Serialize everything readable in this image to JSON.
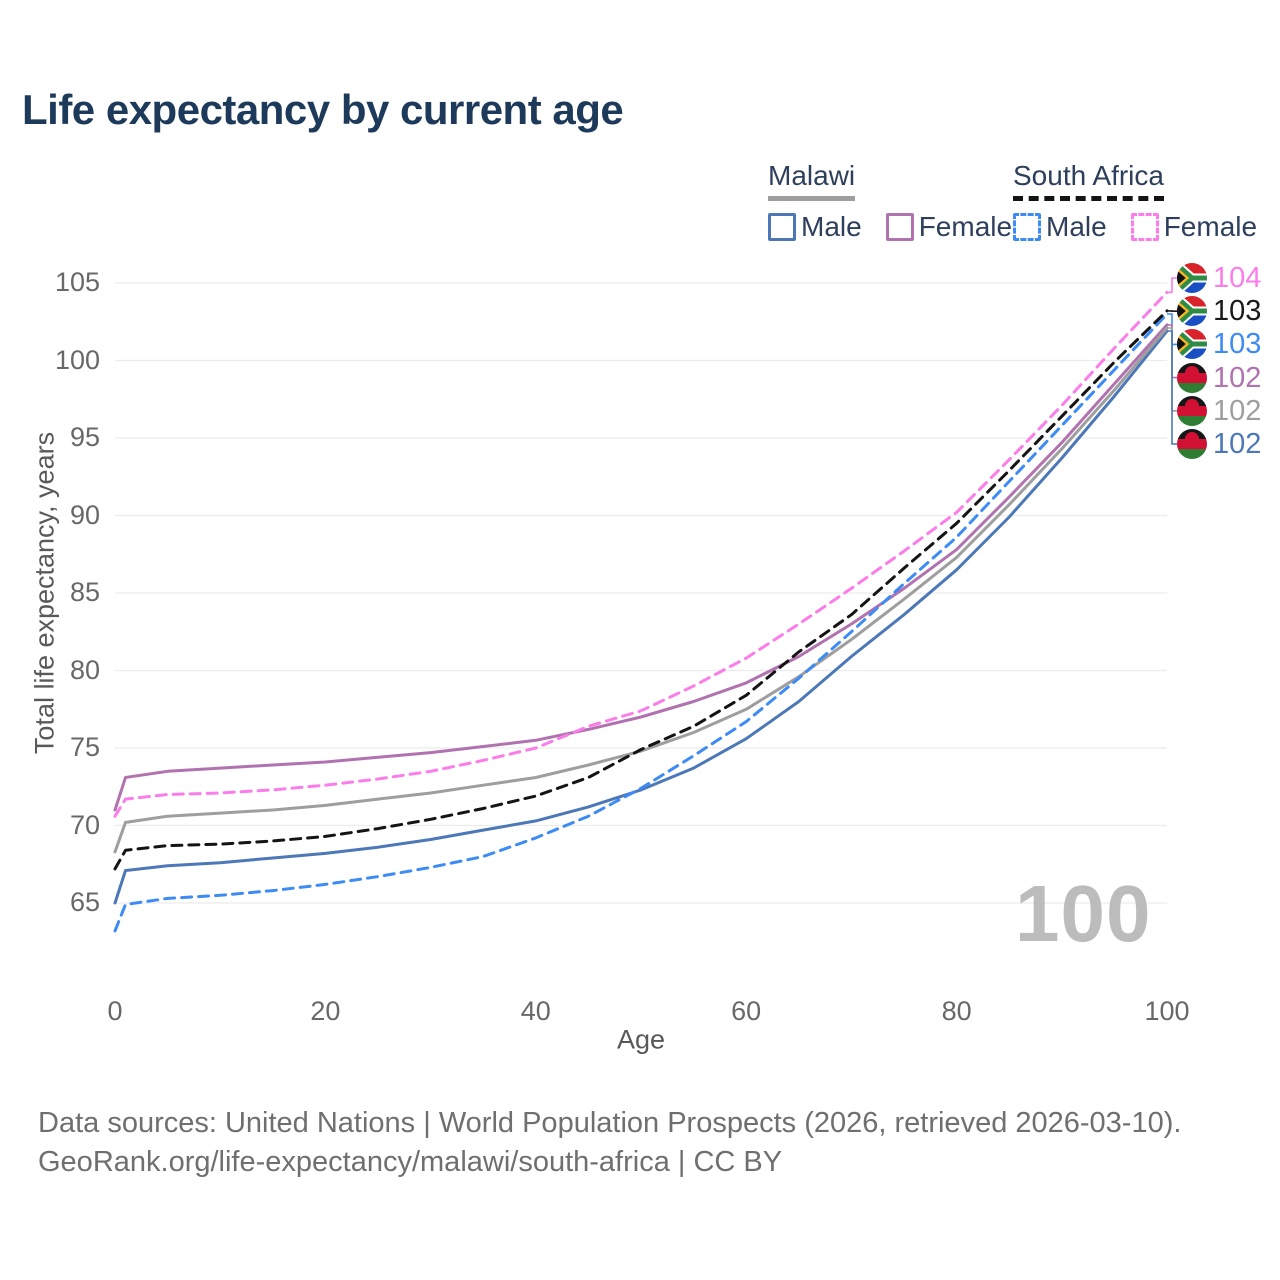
{
  "title": "Life expectancy by current age",
  "watermark": "100",
  "legend": {
    "groups": [
      {
        "name": "Malawi",
        "line_style": "solid",
        "underline_color": "#9e9e9e",
        "items": [
          {
            "label": "Male",
            "color": "#4c78b8"
          },
          {
            "label": "Female",
            "color": "#b172b0"
          }
        ]
      },
      {
        "name": "South Africa",
        "line_style": "dashed",
        "underline_color": "#141414",
        "items": [
          {
            "label": "Male",
            "color": "#3d8bf5"
          },
          {
            "label": "Female",
            "color": "#fb7de9"
          }
        ]
      }
    ]
  },
  "chart_data": {
    "type": "line",
    "title": "Life expectancy by current age",
    "xlabel": "Age",
    "ylabel": "Total life expectancy, years",
    "xlim": [
      0,
      100
    ],
    "ylim": [
      63,
      105.5
    ],
    "x_ticks": [
      0,
      20,
      40,
      60,
      80,
      100
    ],
    "y_ticks": [
      65,
      70,
      75,
      80,
      85,
      90,
      95,
      100,
      105
    ],
    "grid": "horizontal",
    "grid_color": "#ececec",
    "legend_position": "top-right",
    "x": [
      0,
      1,
      5,
      10,
      15,
      20,
      25,
      30,
      35,
      40,
      45,
      50,
      55,
      60,
      65,
      70,
      75,
      80,
      85,
      90,
      95,
      100
    ],
    "series": [
      {
        "key": "malawi-male",
        "country": "Malawi",
        "sex": "Male",
        "color": "#4c78b8",
        "dash": false,
        "end_label": "102",
        "values": [
          65.0,
          67.1,
          67.4,
          67.6,
          67.9,
          68.2,
          68.6,
          69.1,
          69.7,
          70.3,
          71.2,
          72.3,
          73.7,
          75.6,
          78.0,
          80.9,
          83.6,
          86.5,
          89.9,
          93.7,
          97.7,
          101.9
        ]
      },
      {
        "key": "malawi-female",
        "country": "Malawi",
        "sex": "Female",
        "color": "#b172b0",
        "dash": false,
        "end_label": "102",
        "values": [
          71.0,
          73.1,
          73.5,
          73.7,
          73.9,
          74.1,
          74.4,
          74.7,
          75.1,
          75.5,
          76.2,
          77.0,
          78.0,
          79.2,
          80.9,
          83.0,
          85.3,
          87.8,
          91.2,
          94.7,
          98.5,
          102.3
        ]
      },
      {
        "key": "malawi-both",
        "country": "Malawi",
        "sex": "Both sexes",
        "color": "#9e9e9e",
        "dash": false,
        "end_label": "102",
        "values": [
          68.3,
          70.2,
          70.6,
          70.8,
          71.0,
          71.3,
          71.7,
          72.1,
          72.6,
          73.1,
          73.9,
          74.8,
          76.0,
          77.5,
          79.6,
          82.0,
          84.6,
          87.3,
          90.7,
          94.3,
          98.1,
          102.1
        ]
      },
      {
        "key": "south-africa-male",
        "country": "South Africa",
        "sex": "Male",
        "color": "#3d8bf5",
        "dash": true,
        "end_label": "103",
        "values": [
          63.2,
          64.9,
          65.3,
          65.5,
          65.8,
          66.2,
          66.7,
          67.3,
          68.0,
          69.2,
          70.6,
          72.4,
          74.5,
          76.7,
          79.5,
          82.5,
          85.6,
          88.6,
          92.2,
          95.8,
          99.4,
          103.0
        ]
      },
      {
        "key": "south-africa-female",
        "country": "South Africa",
        "sex": "Female",
        "color": "#fb7de9",
        "dash": true,
        "end_label": "104",
        "values": [
          70.6,
          71.7,
          72.0,
          72.1,
          72.3,
          72.6,
          73.0,
          73.5,
          74.2,
          75.0,
          76.4,
          77.4,
          79.0,
          80.8,
          83.0,
          85.3,
          87.7,
          90.2,
          93.6,
          97.1,
          100.8,
          104.4
        ]
      },
      {
        "key": "south-africa-both",
        "country": "South Africa",
        "sex": "Both sexes",
        "color": "#141414",
        "dash": true,
        "end_label": "103",
        "values": [
          67.2,
          68.4,
          68.7,
          68.8,
          69.0,
          69.3,
          69.8,
          70.4,
          71.1,
          71.9,
          73.1,
          74.9,
          76.4,
          78.4,
          81.2,
          83.6,
          86.6,
          89.5,
          92.9,
          96.4,
          99.9,
          103.2
        ]
      }
    ]
  },
  "right_rail": {
    "rows": [
      {
        "series": "south-africa-female",
        "flag": "south-africa",
        "label": "104",
        "color": "#fb7de9"
      },
      {
        "series": "south-africa-both",
        "flag": "south-africa",
        "label": "103",
        "color": "#1a1a1a"
      },
      {
        "series": "south-africa-male",
        "flag": "south-africa",
        "label": "103",
        "color": "#3d8bf5"
      },
      {
        "series": "malawi-female",
        "flag": "malawi",
        "label": "102",
        "color": "#b172b0"
      },
      {
        "series": "malawi-both",
        "flag": "malawi",
        "label": "102",
        "color": "#9e9e9e"
      },
      {
        "series": "malawi-male",
        "flag": "malawi",
        "label": "102",
        "color": "#4c78b8"
      }
    ]
  },
  "footer": {
    "line1": "Data sources: United Nations | World Population Prospects (2026, retrieved 2026-03-10).",
    "line2": "GeoRank.org/life-expectancy/malawi/south-africa | CC BY"
  }
}
